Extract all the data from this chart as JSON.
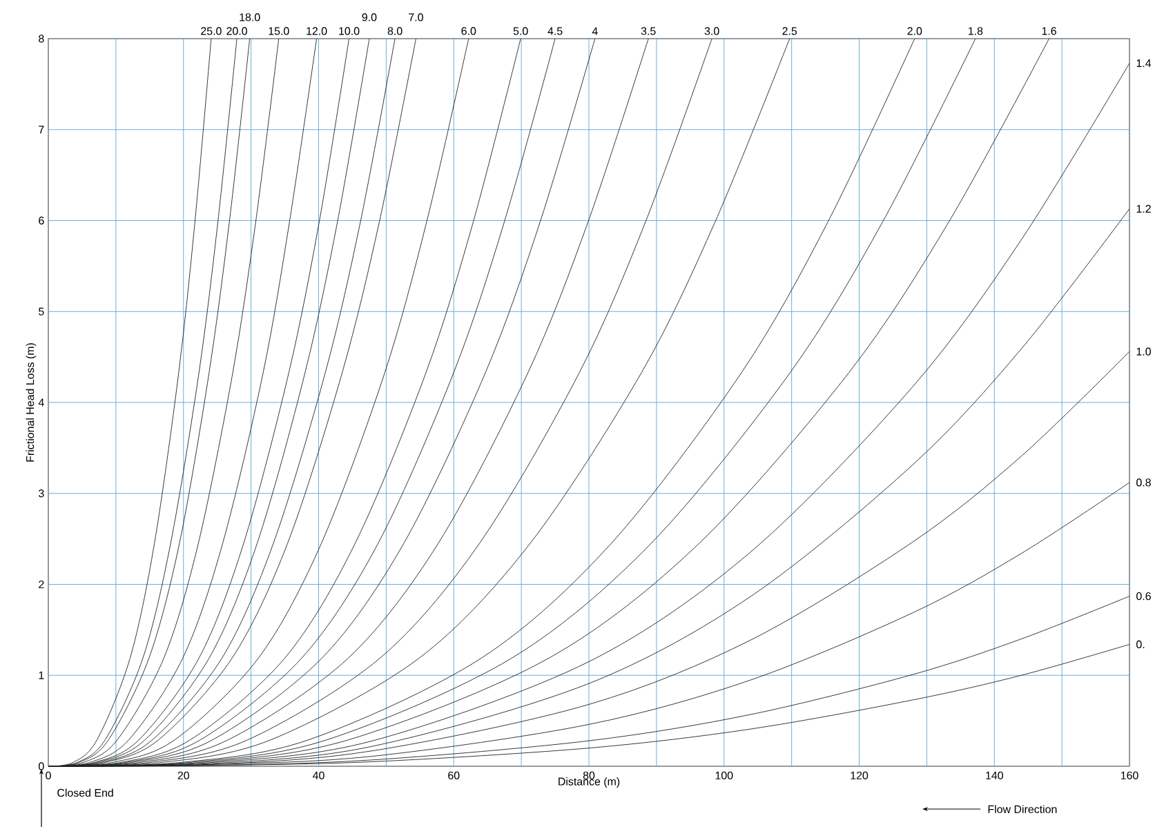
{
  "chart_data": {
    "type": "line",
    "xlabel": "Distance (m)",
    "ylabel": "Frictional Head Loss (m)",
    "xlim": [
      0,
      160
    ],
    "ylim": [
      0,
      8
    ],
    "xticks": [
      0,
      {
        "value": 10,
        "label": null
      },
      20,
      {
        "value": 30,
        "label": null
      },
      40,
      {
        "value": 50,
        "label": null
      },
      60,
      {
        "value": 70,
        "label": null
      },
      80,
      {
        "value": 90,
        "label": null
      },
      100,
      {
        "value": 110,
        "label": null
      },
      120,
      {
        "value": 130,
        "label": null
      },
      140,
      {
        "value": 150,
        "label": null
      },
      160
    ],
    "yticks": [
      0,
      1,
      2,
      3,
      4,
      5,
      6,
      7,
      8
    ],
    "grid": true,
    "annotations": [
      "Closed End",
      "Flow Direction"
    ],
    "series": [
      {
        "name": "25.0",
        "color": "#222222",
        "x": [
          0,
          3.6,
          7.2,
          12.1,
          15.7,
          19.3,
          21.7,
          24.1
        ],
        "values": [
          0,
          0.04,
          0.29,
          1.19,
          2.45,
          4.33,
          5.99,
          8
        ]
      },
      {
        "name": "20.0",
        "color": "#222222",
        "x": [
          0,
          4.2,
          8.4,
          14.0,
          18.1,
          22.3,
          25.1,
          27.9
        ],
        "values": [
          0,
          0.04,
          0.29,
          1.19,
          2.45,
          4.33,
          5.99,
          8
        ]
      },
      {
        "name": "18.0",
        "color": "#222222",
        "x": [
          0,
          4.5,
          8.9,
          14.9,
          19.4,
          23.8,
          26.8,
          29.8
        ],
        "values": [
          0,
          0.04,
          0.29,
          1.19,
          2.45,
          4.33,
          5.99,
          8
        ]
      },
      {
        "name": "15.0",
        "color": "#222222",
        "x": [
          0,
          5.1,
          10.2,
          17.1,
          22.2,
          27.3,
          30.7,
          34.1
        ],
        "values": [
          0,
          0.04,
          0.29,
          1.19,
          2.45,
          4.33,
          5.99,
          8
        ]
      },
      {
        "name": "12.0",
        "color": "#222222",
        "x": [
          0,
          6.0,
          11.9,
          19.9,
          25.8,
          31.8,
          35.7,
          39.7
        ],
        "values": [
          0,
          0.04,
          0.29,
          1.19,
          2.45,
          4.33,
          5.99,
          8
        ]
      },
      {
        "name": "10.0",
        "color": "#222222",
        "x": [
          0,
          6.7,
          13.4,
          22.3,
          28.9,
          35.6,
          40.1,
          44.5
        ],
        "values": [
          0,
          0.04,
          0.29,
          1.19,
          2.45,
          4.33,
          5.99,
          8
        ]
      },
      {
        "name": "9.0",
        "color": "#222222",
        "x": [
          0,
          7.1,
          14.3,
          23.8,
          30.9,
          38.0,
          42.8,
          47.5
        ],
        "values": [
          0,
          0.04,
          0.29,
          1.19,
          2.45,
          4.33,
          5.99,
          8
        ]
      },
      {
        "name": "8.0",
        "color": "#222222",
        "x": [
          0,
          7.7,
          15.4,
          25.7,
          33.3,
          41.0,
          46.2,
          51.3
        ],
        "values": [
          0,
          0.04,
          0.29,
          1.19,
          2.45,
          4.33,
          5.99,
          8
        ]
      },
      {
        "name": "7.0",
        "color": "#222222",
        "x": [
          0,
          8.2,
          16.3,
          27.2,
          35.4,
          43.5,
          49.0,
          54.4
        ],
        "values": [
          0,
          0.04,
          0.29,
          1.19,
          2.45,
          4.33,
          5.99,
          8
        ]
      },
      {
        "name": "6.0",
        "color": "#222222",
        "x": [
          0,
          9.3,
          18.7,
          31.1,
          40.4,
          49.8,
          56.0,
          62.2
        ],
        "values": [
          0,
          0.04,
          0.29,
          1.19,
          2.45,
          4.33,
          5.99,
          8
        ]
      },
      {
        "name": "5.0",
        "color": "#222222",
        "x": [
          0,
          10.5,
          21.0,
          35.0,
          45.4,
          55.9,
          62.9,
          69.9
        ],
        "values": [
          0,
          0.04,
          0.29,
          1.19,
          2.45,
          4.33,
          5.99,
          8
        ]
      },
      {
        "name": "4.5",
        "color": "#222222",
        "x": [
          0,
          11.3,
          22.5,
          37.5,
          48.8,
          60.0,
          67.5,
          75.0
        ],
        "values": [
          0,
          0.04,
          0.29,
          1.19,
          2.45,
          4.33,
          5.99,
          8
        ]
      },
      {
        "name": "4",
        "color": "#222222",
        "x": [
          0,
          12.1,
          24.3,
          40.5,
          52.6,
          64.7,
          72.8,
          80.9
        ],
        "values": [
          0,
          0.04,
          0.29,
          1.19,
          2.45,
          4.33,
          5.99,
          8
        ]
      },
      {
        "name": "3.5",
        "color": "#222222",
        "x": [
          0,
          13.3,
          26.6,
          44.4,
          57.7,
          71.0,
          79.9,
          88.8
        ],
        "values": [
          0,
          0.04,
          0.29,
          1.19,
          2.45,
          4.33,
          5.99,
          8
        ]
      },
      {
        "name": "3.0",
        "color": "#222222",
        "x": [
          0,
          14.7,
          29.5,
          49.1,
          63.8,
          78.6,
          88.4,
          98.2
        ],
        "values": [
          0,
          0.04,
          0.29,
          1.19,
          2.45,
          4.33,
          5.99,
          8
        ]
      },
      {
        "name": "2.5",
        "color": "#222222",
        "x": [
          0,
          16.5,
          32.9,
          54.9,
          71.3,
          87.8,
          98.7,
          109.7
        ],
        "values": [
          0,
          0.04,
          0.29,
          1.19,
          2.45,
          4.33,
          5.99,
          8
        ]
      },
      {
        "name": "2.0",
        "color": "#222222",
        "x": [
          0,
          19.2,
          38.5,
          64.1,
          83.3,
          102.6,
          115.4,
          128.2
        ],
        "values": [
          0,
          0.04,
          0.29,
          1.19,
          2.45,
          4.33,
          5.99,
          8
        ]
      },
      {
        "name": "1.8",
        "color": "#222222",
        "x": [
          0,
          20.6,
          41.2,
          68.6,
          89.2,
          109.8,
          123.5,
          137.2
        ],
        "values": [
          0,
          0.04,
          0.29,
          1.19,
          2.45,
          4.33,
          5.99,
          8
        ]
      },
      {
        "name": "1.6",
        "color": "#222222",
        "x": [
          0,
          22.2,
          44.4,
          74.1,
          96.3,
          118.5,
          133.3,
          148.1
        ],
        "values": [
          0,
          0.04,
          0.29,
          1.19,
          2.45,
          4.33,
          5.99,
          8
        ]
      },
      {
        "name": "1.4",
        "color": "#222222",
        "x": [
          0,
          24,
          48,
          80,
          104,
          128,
          144,
          160
        ],
        "values": [
          0,
          0.04,
          0.28,
          1.15,
          2.36,
          4.18,
          5.79,
          7.73
        ]
      },
      {
        "name": "1.2",
        "color": "#222222",
        "x": [
          0,
          24,
          48,
          80,
          104,
          128,
          144,
          160
        ],
        "values": [
          0,
          0.03,
          0.22,
          0.91,
          1.87,
          3.32,
          4.59,
          6.13
        ]
      },
      {
        "name": "1.0",
        "color": "#222222",
        "x": [
          0,
          24,
          48,
          80,
          104,
          128,
          144,
          160
        ],
        "values": [
          0,
          0.02,
          0.17,
          0.68,
          1.39,
          2.47,
          3.41,
          4.56
        ]
      },
      {
        "name": "0.8",
        "color": "#222222",
        "x": [
          0,
          24,
          48,
          80,
          104,
          128,
          144,
          160
        ],
        "values": [
          0,
          0.02,
          0.11,
          0.46,
          0.95,
          1.69,
          2.34,
          3.12
        ]
      },
      {
        "name": "0.6",
        "color": "#222222",
        "x": [
          0,
          24,
          48,
          80,
          104,
          128,
          144,
          160
        ],
        "values": [
          0,
          0.01,
          0.07,
          0.28,
          0.57,
          1.01,
          1.4,
          1.87
        ]
      },
      {
        "name": "0.",
        "color": "#222222",
        "x": [
          0,
          24,
          48,
          80,
          104,
          128,
          144,
          160
        ],
        "values": [
          0,
          0.01,
          0.05,
          0.2,
          0.41,
          0.73,
          1.0,
          1.34
        ]
      }
    ]
  }
}
